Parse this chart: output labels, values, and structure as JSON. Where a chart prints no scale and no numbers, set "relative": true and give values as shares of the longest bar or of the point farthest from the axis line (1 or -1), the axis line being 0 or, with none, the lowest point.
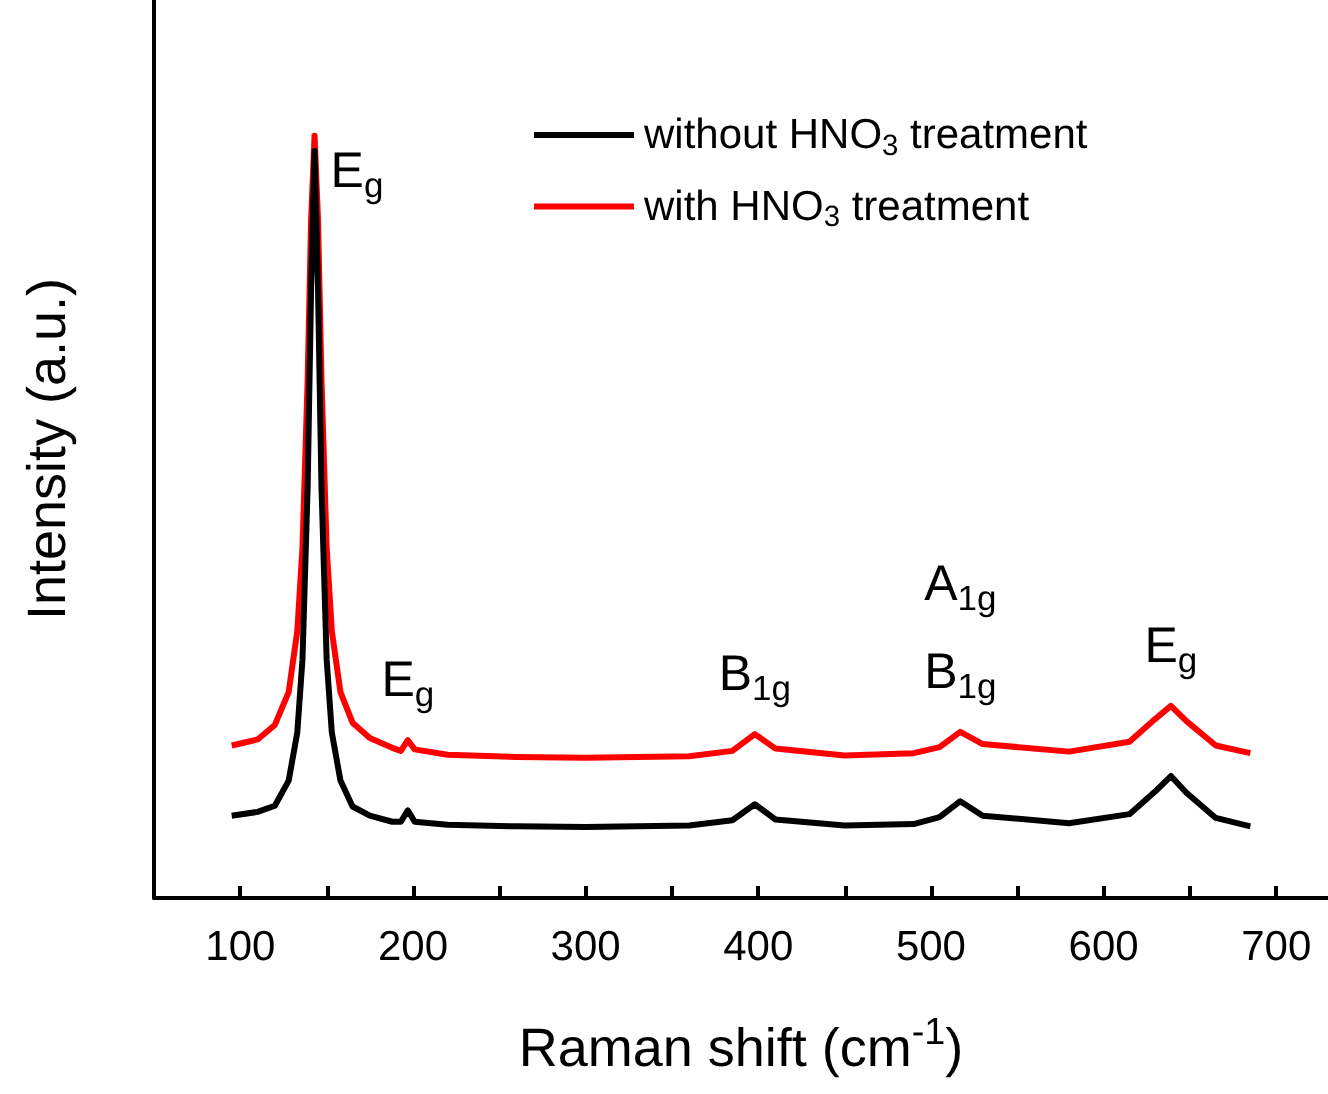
{
  "chart_data": {
    "type": "line",
    "xlabel": "Raman shift (cm$^{-1}$)",
    "ylabel": "Intensity (a.u.)",
    "relative": true,
    "x": [
      95,
      110,
      120,
      128,
      133,
      136,
      139,
      141,
      143,
      145,
      147,
      150,
      153,
      158,
      165,
      175,
      188,
      193,
      197,
      201,
      220,
      260,
      300,
      360,
      385,
      398,
      410,
      450,
      490,
      505,
      517,
      530,
      580,
      615,
      630,
      639,
      648,
      665,
      685
    ],
    "series": [
      {
        "name": "without HNO$_{3}$ treatment",
        "color": "#000000",
        "values": [
          0.108,
          0.113,
          0.121,
          0.154,
          0.217,
          0.313,
          0.54,
          0.8,
          0.98,
          0.8,
          0.54,
          0.313,
          0.217,
          0.154,
          0.12,
          0.108,
          0.1,
          0.1,
          0.115,
          0.1,
          0.096,
          0.094,
          0.093,
          0.095,
          0.102,
          0.123,
          0.103,
          0.095,
          0.097,
          0.106,
          0.127,
          0.108,
          0.098,
          0.11,
          0.14,
          0.16,
          0.138,
          0.105,
          0.094
        ]
      },
      {
        "name": "with HNO$_{3}$ treatment",
        "color": "#ff0000",
        "values": [
          0.2,
          0.208,
          0.227,
          0.27,
          0.35,
          0.46,
          0.68,
          0.89,
          1,
          0.89,
          0.68,
          0.46,
          0.35,
          0.27,
          0.23,
          0.21,
          0.197,
          0.193,
          0.207,
          0.195,
          0.188,
          0.185,
          0.184,
          0.186,
          0.193,
          0.215,
          0.196,
          0.187,
          0.19,
          0.198,
          0.218,
          0.202,
          0.192,
          0.205,
          0.235,
          0.252,
          0.232,
          0.2,
          0.19
        ]
      }
    ],
    "xlim": [
      50,
      730
    ],
    "xticks": [
      {
        "value": 50,
        "label": null
      },
      100,
      {
        "value": 150,
        "label": null
      },
      200,
      {
        "value": 250,
        "label": null
      },
      300,
      {
        "value": 350,
        "label": null
      },
      400,
      {
        "value": 450,
        "label": null
      },
      500,
      {
        "value": 550,
        "label": null
      },
      600,
      {
        "value": 650,
        "label": null
      },
      700
    ],
    "annotations": [
      {
        "text": "E$_{g}$",
        "x": 143,
        "y": 1
      },
      {
        "text": "E$_{g}$",
        "x": 197,
        "y": 0.207
      },
      {
        "text": "B$_{1g}$",
        "x": 398,
        "y": 0.215
      },
      {
        "text": "B$_{1g}$",
        "x": 517,
        "y": 0.218
      },
      {
        "text": "A$_{1g}$",
        "x": 517,
        "y": 0.218
      },
      {
        "text": "E$_{g}$",
        "x": 639,
        "y": 0.252
      }
    ],
    "legend": "top right",
    "grid": false,
    "marker": "none",
    "line_style": "solid"
  }
}
